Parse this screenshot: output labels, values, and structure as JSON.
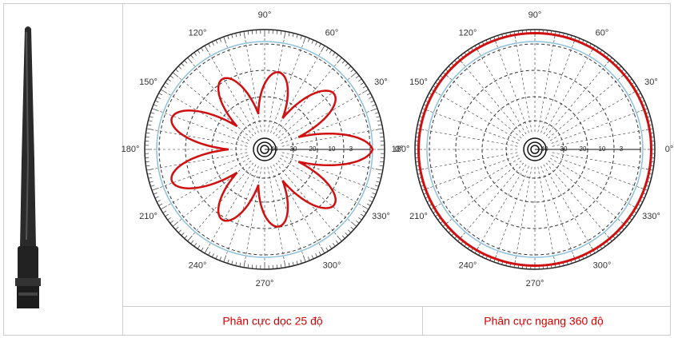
{
  "captions": [
    "Phân cực dọc 25 độ",
    "Phân cực ngang 360 độ"
  ],
  "polar_plots": [
    {
      "angle_labels": [
        "0°",
        "30°",
        "60°",
        "90°",
        "120°",
        "150°",
        "180°",
        "210°",
        "240°",
        "270°",
        "300°",
        "330°"
      ],
      "radial_labels": [
        "40",
        "30",
        "20",
        "10",
        "3"
      ]
    },
    {
      "angle_labels": [
        "0°",
        "30°",
        "60°",
        "90°",
        "120°",
        "150°",
        "180°",
        "210°",
        "240°",
        "270°",
        "300°",
        "330°"
      ],
      "radial_labels": [
        "40",
        "30",
        "20",
        "10",
        "3"
      ]
    }
  ]
}
